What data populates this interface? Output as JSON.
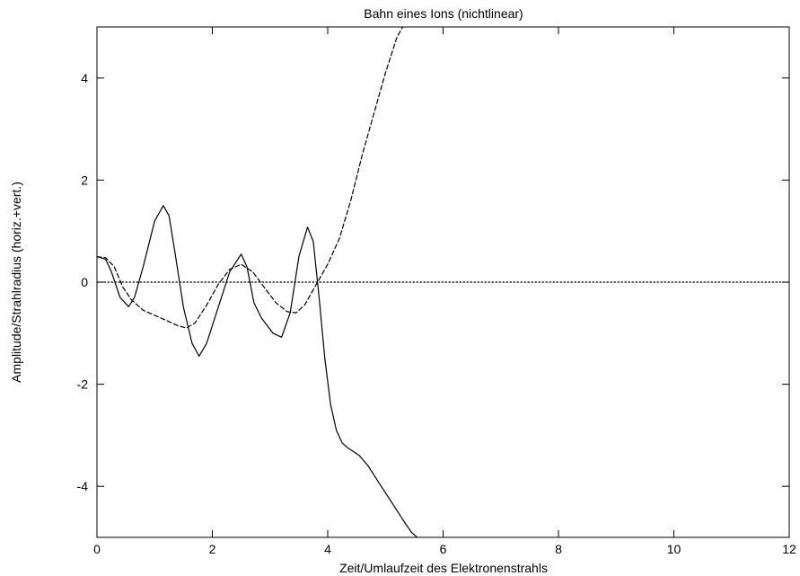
{
  "chart_data": {
    "type": "line",
    "title": "Bahn eines Ions (nichtlinear)",
    "xlabel": "Zeit/Umlaufzeit des Elektronenstrahls",
    "ylabel": "Amplitude/Strahlradius (horiz.+vert.)",
    "xlim": [
      0,
      12
    ],
    "ylim": [
      -5,
      5
    ],
    "xticks": [
      0,
      2,
      4,
      6,
      8,
      10,
      12
    ],
    "yticks": [
      -4,
      -2,
      0,
      2,
      4
    ],
    "grid": false,
    "legend": "none",
    "series": [
      {
        "style": "solid",
        "color": "#000000",
        "x": [
          0,
          0.15,
          0.25,
          0.4,
          0.55,
          0.65,
          0.8,
          1.0,
          1.15,
          1.25,
          1.35,
          1.5,
          1.65,
          1.77,
          1.9,
          2.1,
          2.3,
          2.5,
          2.6,
          2.72,
          2.85,
          3.05,
          3.2,
          3.35,
          3.5,
          3.65,
          3.75,
          3.85,
          3.95,
          4.05,
          4.15,
          4.25,
          4.35,
          4.45,
          4.55,
          4.7,
          4.9,
          5.1,
          5.3,
          5.45,
          5.55
        ],
        "y": [
          0.5,
          0.45,
          0.2,
          -0.3,
          -0.48,
          -0.3,
          0.3,
          1.2,
          1.5,
          1.3,
          0.6,
          -0.5,
          -1.2,
          -1.45,
          -1.2,
          -0.5,
          0.2,
          0.55,
          0.3,
          -0.4,
          -0.7,
          -1.0,
          -1.08,
          -0.6,
          0.5,
          1.08,
          0.8,
          -0.3,
          -1.5,
          -2.4,
          -2.9,
          -3.15,
          -3.25,
          -3.32,
          -3.4,
          -3.6,
          -3.95,
          -4.3,
          -4.65,
          -4.9,
          -5.0
        ]
      },
      {
        "style": "dashed",
        "color": "#000000",
        "x": [
          0,
          0.15,
          0.3,
          0.45,
          0.6,
          0.8,
          1.0,
          1.2,
          1.4,
          1.55,
          1.7,
          1.9,
          2.1,
          2.3,
          2.5,
          2.7,
          2.9,
          3.1,
          3.3,
          3.45,
          3.6,
          3.8,
          4.0,
          4.2,
          4.4,
          4.6,
          4.8,
          5.0,
          5.2,
          5.3
        ],
        "y": [
          0.5,
          0.48,
          0.3,
          -0.1,
          -0.35,
          -0.55,
          -0.65,
          -0.75,
          -0.85,
          -0.9,
          -0.8,
          -0.45,
          -0.05,
          0.25,
          0.35,
          0.2,
          -0.1,
          -0.4,
          -0.58,
          -0.6,
          -0.45,
          -0.05,
          0.35,
          0.85,
          1.6,
          2.5,
          3.3,
          4.1,
          4.8,
          5.0
        ]
      },
      {
        "style": "dotted",
        "color": "#000000",
        "x": [
          0,
          12
        ],
        "y": [
          0,
          0
        ]
      }
    ]
  }
}
